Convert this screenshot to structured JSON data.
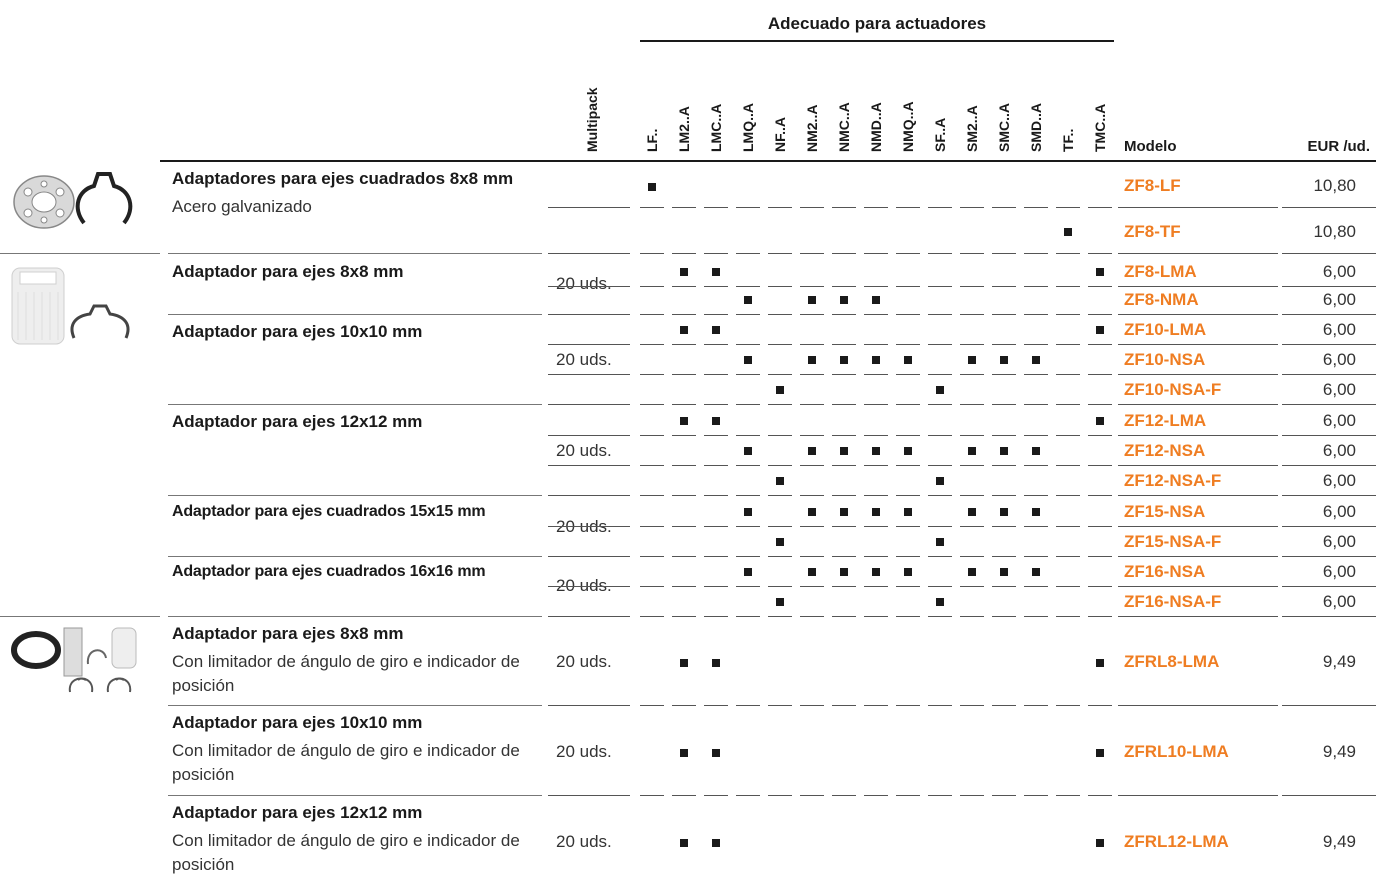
{
  "header": {
    "group_title": "Adecuado para actuadores",
    "multipack": "Multipack",
    "actuators": [
      "LF..",
      "LM2..A",
      "LMC..A",
      "LMQ..A",
      "NF..A",
      "NM2..A",
      "NMC..A",
      "NMD..A",
      "NMQ..A",
      "SF..A",
      "SM2..A",
      "SMC..A",
      "SMD..A",
      "TF..",
      "TMC..A"
    ],
    "model": "Modelo",
    "price": "EUR /ud."
  },
  "products": [
    {
      "title": "Adaptadores para ejes cuadrados 8x8 mm",
      "subtitle": "Acero galvanizado",
      "multipack": "",
      "variants": [
        {
          "model": "ZF8-LF",
          "price": "10,80",
          "actuators": [
            "LF.."
          ]
        },
        {
          "model": "ZF8-TF",
          "price": "10,80",
          "actuators": [
            "TF.."
          ]
        }
      ]
    },
    {
      "title": "Adaptador para ejes 8x8 mm",
      "multipack": "20 uds.",
      "variants": [
        {
          "model": "ZF8-LMA",
          "price": "6,00",
          "actuators": [
            "LM2..A",
            "LMC..A",
            "TMC..A"
          ]
        },
        {
          "model": "ZF8-NMA",
          "price": "6,00",
          "actuators": [
            "LMQ..A",
            "NM2..A",
            "NMC..A",
            "NMD..A"
          ]
        }
      ]
    },
    {
      "title": "Adaptador para ejes 10x10 mm",
      "multipack": "20 uds.",
      "variants": [
        {
          "model": "ZF10-LMA",
          "price": "6,00",
          "actuators": [
            "LM2..A",
            "LMC..A",
            "TMC..A"
          ]
        },
        {
          "model": "ZF10-NSA",
          "price": "6,00",
          "actuators": [
            "LMQ..A",
            "NM2..A",
            "NMC..A",
            "NMD..A",
            "NMQ..A",
            "SM2..A",
            "SMC..A",
            "SMD..A"
          ]
        },
        {
          "model": "ZF10-NSA-F",
          "price": "6,00",
          "actuators": [
            "NF..A",
            "SF..A"
          ]
        }
      ]
    },
    {
      "title": "Adaptador para ejes 12x12 mm",
      "multipack": "20 uds.",
      "variants": [
        {
          "model": "ZF12-LMA",
          "price": "6,00",
          "actuators": [
            "LM2..A",
            "LMC..A",
            "TMC..A"
          ]
        },
        {
          "model": "ZF12-NSA",
          "price": "6,00",
          "actuators": [
            "LMQ..A",
            "NM2..A",
            "NMC..A",
            "NMD..A",
            "NMQ..A",
            "SM2..A",
            "SMC..A",
            "SMD..A"
          ]
        },
        {
          "model": "ZF12-NSA-F",
          "price": "6,00",
          "actuators": [
            "NF..A",
            "SF..A"
          ]
        }
      ]
    },
    {
      "title": "Adaptador para ejes cuadrados 15x15 mm",
      "multipack": "20 uds.",
      "variants": [
        {
          "model": "ZF15-NSA",
          "price": "6,00",
          "actuators": [
            "LMQ..A",
            "NM2..A",
            "NMC..A",
            "NMD..A",
            "NMQ..A",
            "SM2..A",
            "SMC..A",
            "SMD..A"
          ]
        },
        {
          "model": "ZF15-NSA-F",
          "price": "6,00",
          "actuators": [
            "NF..A",
            "SF..A"
          ]
        }
      ]
    },
    {
      "title": "Adaptador para ejes cuadrados 16x16 mm",
      "multipack": "20 uds.",
      "variants": [
        {
          "model": "ZF16-NSA",
          "price": "6,00",
          "actuators": [
            "LMQ..A",
            "NM2..A",
            "NMC..A",
            "NMD..A",
            "NMQ..A",
            "SM2..A",
            "SMC..A",
            "SMD..A"
          ]
        },
        {
          "model": "ZF16-NSA-F",
          "price": "6,00",
          "actuators": [
            "NF..A",
            "SF..A"
          ]
        }
      ]
    },
    {
      "title": "Adaptador para ejes 8x8 mm",
      "subtitle": "Con limitador de ángulo de giro e indicador de posición",
      "multipack": "20 uds.",
      "variants": [
        {
          "model": "ZFRL8-LMA",
          "price": "9,49",
          "actuators": [
            "LM2..A",
            "LMC..A",
            "TMC..A"
          ]
        }
      ]
    },
    {
      "title": "Adaptador para ejes 10x10 mm",
      "subtitle": "Con limitador de ángulo de giro e indicador de posición",
      "multipack": "20 uds.",
      "variants": [
        {
          "model": "ZFRL10-LMA",
          "price": "9,49",
          "actuators": [
            "LM2..A",
            "LMC..A",
            "TMC..A"
          ]
        }
      ]
    },
    {
      "title": "Adaptador para ejes 12x12 mm",
      "subtitle": "Con limitador de ángulo de giro e indicador de posición",
      "multipack": "20 uds.",
      "variants": [
        {
          "model": "ZFRL12-LMA",
          "price": "9,49",
          "actuators": [
            "LM2..A",
            "LMC..A",
            "TMC..A"
          ]
        }
      ]
    }
  ]
}
